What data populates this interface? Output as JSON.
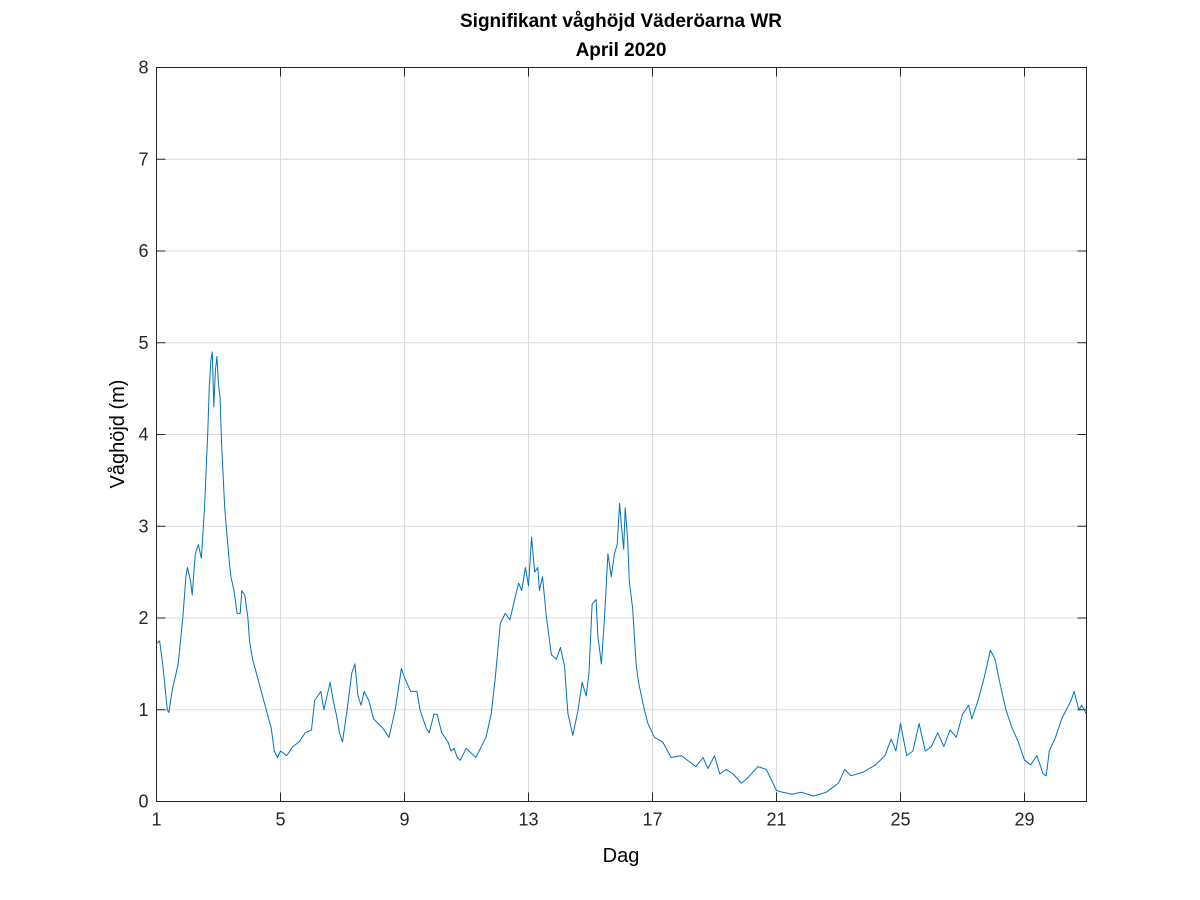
{
  "chart_data": {
    "type": "line",
    "title": "Signifikant våghöjd Väderöarna WR",
    "subtitle": "April 2020",
    "xlabel": "Dag",
    "ylabel": "Våghöjd (m)",
    "xlim": [
      1,
      31
    ],
    "ylim": [
      0,
      8
    ],
    "xticks": [
      "1",
      "5",
      "9",
      "13",
      "17",
      "21",
      "25",
      "29"
    ],
    "yticks": [
      "0",
      "1",
      "2",
      "3",
      "4",
      "5",
      "6",
      "7",
      "8"
    ],
    "grid": true,
    "line_color": "#0072BD",
    "series": [
      {
        "name": "Våghöjd",
        "points": [
          [
            1.0,
            1.72
          ],
          [
            1.1,
            1.75
          ],
          [
            1.2,
            1.5
          ],
          [
            1.35,
            1.0
          ],
          [
            1.4,
            0.97
          ],
          [
            1.5,
            1.2
          ],
          [
            1.7,
            1.5
          ],
          [
            1.85,
            2.0
          ],
          [
            1.95,
            2.45
          ],
          [
            2.0,
            2.55
          ],
          [
            2.1,
            2.4
          ],
          [
            2.15,
            2.25
          ],
          [
            2.25,
            2.7
          ],
          [
            2.35,
            2.8
          ],
          [
            2.45,
            2.65
          ],
          [
            2.55,
            3.2
          ],
          [
            2.65,
            4.0
          ],
          [
            2.7,
            4.5
          ],
          [
            2.75,
            4.8
          ],
          [
            2.8,
            4.9
          ],
          [
            2.85,
            4.3
          ],
          [
            2.9,
            4.7
          ],
          [
            2.95,
            4.85
          ],
          [
            3.0,
            4.55
          ],
          [
            3.05,
            4.4
          ],
          [
            3.1,
            3.9
          ],
          [
            3.2,
            3.2
          ],
          [
            3.3,
            2.8
          ],
          [
            3.35,
            2.6
          ],
          [
            3.4,
            2.45
          ],
          [
            3.5,
            2.3
          ],
          [
            3.6,
            2.05
          ],
          [
            3.7,
            2.05
          ],
          [
            3.75,
            2.3
          ],
          [
            3.85,
            2.25
          ],
          [
            3.95,
            2.0
          ],
          [
            4.0,
            1.75
          ],
          [
            4.1,
            1.55
          ],
          [
            4.3,
            1.3
          ],
          [
            4.5,
            1.05
          ],
          [
            4.7,
            0.8
          ],
          [
            4.8,
            0.55
          ],
          [
            4.9,
            0.48
          ],
          [
            5.0,
            0.55
          ],
          [
            5.2,
            0.5
          ],
          [
            5.4,
            0.6
          ],
          [
            5.6,
            0.65
          ],
          [
            5.8,
            0.75
          ],
          [
            6.0,
            0.78
          ],
          [
            6.1,
            1.1
          ],
          [
            6.3,
            1.2
          ],
          [
            6.4,
            1.0
          ],
          [
            6.6,
            1.3
          ],
          [
            6.7,
            1.1
          ],
          [
            6.8,
            0.95
          ],
          [
            6.9,
            0.75
          ],
          [
            7.0,
            0.65
          ],
          [
            7.15,
            1.0
          ],
          [
            7.3,
            1.4
          ],
          [
            7.4,
            1.5
          ],
          [
            7.5,
            1.15
          ],
          [
            7.6,
            1.05
          ],
          [
            7.7,
            1.2
          ],
          [
            7.85,
            1.1
          ],
          [
            8.0,
            0.9
          ],
          [
            8.3,
            0.8
          ],
          [
            8.5,
            0.7
          ],
          [
            8.7,
            1.0
          ],
          [
            8.9,
            1.45
          ],
          [
            9.0,
            1.35
          ],
          [
            9.2,
            1.2
          ],
          [
            9.4,
            1.2
          ],
          [
            9.5,
            1.0
          ],
          [
            9.7,
            0.8
          ],
          [
            9.8,
            0.75
          ],
          [
            9.95,
            0.95
          ],
          [
            10.05,
            0.95
          ],
          [
            10.2,
            0.75
          ],
          [
            10.4,
            0.65
          ],
          [
            10.5,
            0.55
          ],
          [
            10.6,
            0.58
          ],
          [
            10.7,
            0.48
          ],
          [
            10.8,
            0.45
          ],
          [
            10.99,
            0.58
          ],
          [
            11.3,
            0.48
          ],
          [
            11.63,
            0.7
          ],
          [
            11.8,
            0.96
          ],
          [
            11.93,
            1.35
          ],
          [
            12.09,
            1.94
          ],
          [
            12.25,
            2.05
          ],
          [
            12.4,
            1.98
          ],
          [
            12.68,
            2.38
          ],
          [
            12.78,
            2.3
          ],
          [
            12.9,
            2.55
          ],
          [
            13.0,
            2.35
          ],
          [
            13.1,
            2.88
          ],
          [
            13.2,
            2.5
          ],
          [
            13.3,
            2.55
          ],
          [
            13.35,
            2.3
          ],
          [
            13.45,
            2.45
          ],
          [
            13.58,
            2.0
          ],
          [
            13.74,
            1.6
          ],
          [
            13.9,
            1.55
          ],
          [
            14.03,
            1.68
          ],
          [
            14.16,
            1.48
          ],
          [
            14.27,
            0.96
          ],
          [
            14.43,
            0.72
          ],
          [
            14.6,
            1.0
          ],
          [
            14.73,
            1.3
          ],
          [
            14.86,
            1.15
          ],
          [
            14.95,
            1.4
          ],
          [
            15.05,
            2.15
          ],
          [
            15.18,
            2.2
          ],
          [
            15.24,
            1.8
          ],
          [
            15.35,
            1.5
          ],
          [
            15.45,
            2.0
          ],
          [
            15.56,
            2.7
          ],
          [
            15.67,
            2.45
          ],
          [
            15.77,
            2.7
          ],
          [
            15.86,
            2.8
          ],
          [
            15.94,
            3.25
          ],
          [
            16.0,
            3.0
          ],
          [
            16.07,
            2.75
          ],
          [
            16.12,
            3.2
          ],
          [
            16.2,
            2.85
          ],
          [
            16.25,
            2.4
          ],
          [
            16.36,
            2.1
          ],
          [
            16.47,
            1.5
          ],
          [
            16.55,
            1.3
          ],
          [
            16.74,
            1.0
          ],
          [
            16.85,
            0.85
          ],
          [
            17.06,
            0.7
          ],
          [
            17.33,
            0.65
          ],
          [
            17.6,
            0.48
          ],
          [
            17.93,
            0.5
          ],
          [
            18.4,
            0.38
          ],
          [
            18.63,
            0.48
          ],
          [
            18.79,
            0.36
          ],
          [
            19.0,
            0.5
          ],
          [
            19.17,
            0.3
          ],
          [
            19.38,
            0.35
          ],
          [
            19.6,
            0.3
          ],
          [
            19.87,
            0.2
          ],
          [
            20.08,
            0.26
          ],
          [
            20.4,
            0.38
          ],
          [
            20.67,
            0.35
          ],
          [
            21.0,
            0.12
          ],
          [
            21.2,
            0.1
          ],
          [
            21.5,
            0.08
          ],
          [
            21.8,
            0.1
          ],
          [
            22.2,
            0.06
          ],
          [
            22.6,
            0.1
          ],
          [
            23.0,
            0.2
          ],
          [
            23.2,
            0.35
          ],
          [
            23.4,
            0.28
          ],
          [
            23.8,
            0.32
          ],
          [
            24.2,
            0.4
          ],
          [
            24.5,
            0.5
          ],
          [
            24.7,
            0.68
          ],
          [
            24.85,
            0.55
          ],
          [
            25.0,
            0.85
          ],
          [
            25.2,
            0.5
          ],
          [
            25.4,
            0.55
          ],
          [
            25.6,
            0.85
          ],
          [
            25.8,
            0.55
          ],
          [
            26.0,
            0.6
          ],
          [
            26.2,
            0.75
          ],
          [
            26.4,
            0.6
          ],
          [
            26.6,
            0.78
          ],
          [
            26.8,
            0.7
          ],
          [
            27.0,
            0.95
          ],
          [
            27.2,
            1.05
          ],
          [
            27.3,
            0.9
          ],
          [
            27.5,
            1.1
          ],
          [
            27.7,
            1.35
          ],
          [
            27.9,
            1.65
          ],
          [
            28.05,
            1.55
          ],
          [
            28.2,
            1.3
          ],
          [
            28.4,
            1.0
          ],
          [
            28.6,
            0.8
          ],
          [
            28.8,
            0.65
          ],
          [
            29.0,
            0.45
          ],
          [
            29.2,
            0.4
          ],
          [
            29.4,
            0.5
          ],
          [
            29.6,
            0.3
          ],
          [
            29.7,
            0.28
          ],
          [
            29.8,
            0.55
          ],
          [
            30.0,
            0.7
          ],
          [
            30.2,
            0.9
          ],
          [
            30.5,
            1.1
          ],
          [
            30.6,
            1.2
          ],
          [
            30.75,
            1.0
          ],
          [
            30.85,
            1.05
          ],
          [
            31.0,
            0.95
          ]
        ]
      }
    ]
  }
}
